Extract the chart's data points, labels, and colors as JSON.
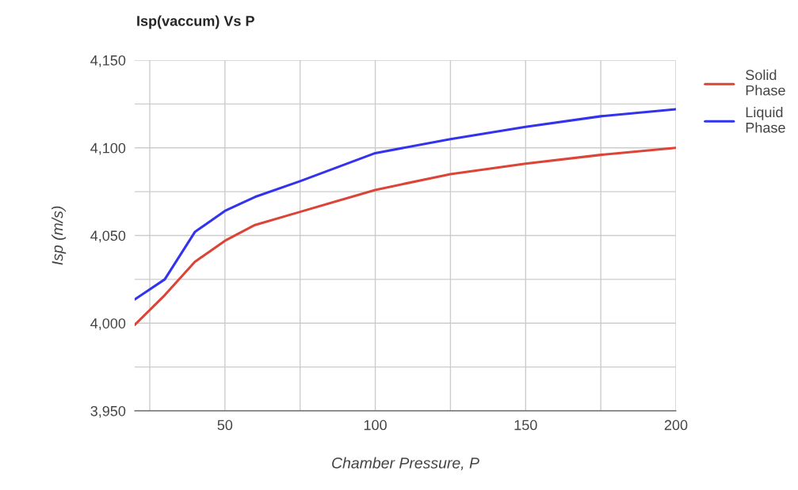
{
  "chart_data": {
    "type": "line",
    "title": "Isp(vaccum) Vs P",
    "xlabel": "Chamber Pressure, P",
    "ylabel": "Isp (m/s)",
    "x": [
      20,
      30,
      40,
      50,
      60,
      75,
      100,
      125,
      150,
      175,
      200
    ],
    "series": [
      {
        "name": "Solid Phase",
        "color": "#db4437",
        "values": [
          3999,
          4016,
          4035,
          4047,
          4056,
          4063.5,
          4076,
          4085,
          4091,
          4096,
          4100
        ]
      },
      {
        "name": "Liquid Phase",
        "color": "#3333ee",
        "values": [
          4013.5,
          4025,
          4052,
          4064,
          4072,
          4081,
          4097,
          4105,
          4112,
          4118,
          4122
        ]
      }
    ],
    "xlim": [
      20,
      200
    ],
    "ylim": [
      3950,
      4150
    ],
    "xticks": [
      {
        "value": 25,
        "label": null
      },
      50,
      {
        "value": 75,
        "label": null
      },
      100,
      {
        "value": 125,
        "label": null
      },
      150,
      {
        "value": 175,
        "label": null
      },
      200
    ],
    "yticks": [
      {
        "value": 3950,
        "label": "3,950"
      },
      {
        "value": 3975,
        "label": null
      },
      {
        "value": 4000,
        "label": "4,000"
      },
      {
        "value": 4025,
        "label": null
      },
      {
        "value": 4050,
        "label": "4,050"
      },
      {
        "value": 4075,
        "label": null
      },
      {
        "value": 4100,
        "label": "4,100"
      },
      {
        "value": 4125,
        "label": null
      },
      {
        "value": 4150,
        "label": "4,150"
      }
    ],
    "grid": true,
    "legend": "right",
    "marker": "none",
    "line_style": "solid"
  }
}
